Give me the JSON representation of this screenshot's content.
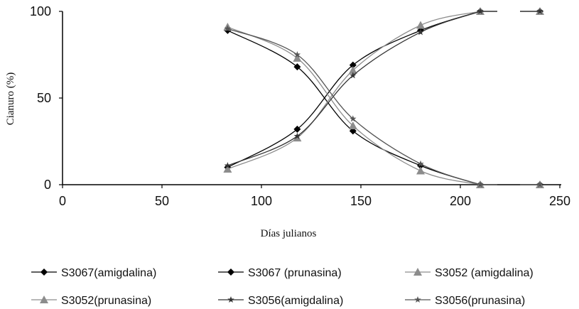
{
  "chart_data": {
    "type": "line",
    "title": "",
    "xlabel": "Días julianos",
    "ylabel": "Cianuro (%)",
    "xlim": [
      0,
      250
    ],
    "ylim": [
      0,
      100
    ],
    "x_ticks": [
      "0",
      "50",
      "100",
      "150",
      "200",
      "250"
    ],
    "y_ticks": [
      "0",
      "50",
      "100"
    ],
    "grid": false,
    "legend_position": "bottom",
    "series": [
      {
        "name": "S3067(amigdalina)",
        "color": "#000000",
        "marker": "diamond",
        "points": [
          [
            83,
            10
          ],
          [
            118,
            32
          ],
          [
            146,
            69
          ],
          [
            180,
            89
          ],
          [
            210,
            100
          ],
          [
            240,
            100
          ]
        ]
      },
      {
        "name": "S3067 (prunasina)",
        "color": "#000000",
        "marker": "diamond",
        "points": [
          [
            83,
            89
          ],
          [
            118,
            68
          ],
          [
            146,
            31
          ],
          [
            180,
            11
          ],
          [
            210,
            0
          ],
          [
            240,
            0
          ]
        ]
      },
      {
        "name": "S3052 (amigdalina)",
        "color": "#8c8c8c",
        "marker": "triangle",
        "points": [
          [
            83,
            9
          ],
          [
            118,
            27
          ],
          [
            146,
            66
          ],
          [
            180,
            92
          ],
          [
            210,
            100
          ],
          [
            240,
            100
          ]
        ]
      },
      {
        "name": "S3052(prunasina)",
        "color": "#8c8c8c",
        "marker": "triangle",
        "points": [
          [
            83,
            91
          ],
          [
            118,
            73
          ],
          [
            146,
            34
          ],
          [
            180,
            8
          ],
          [
            210,
            0
          ],
          [
            240,
            0
          ]
        ]
      },
      {
        "name": "S3056(amigdalina)",
        "color": "#333333",
        "marker": "star",
        "points": [
          [
            83,
            11
          ],
          [
            118,
            28
          ],
          [
            146,
            63
          ],
          [
            180,
            88
          ],
          [
            210,
            100
          ],
          [
            240,
            100
          ]
        ]
      },
      {
        "name": "S3056(prunasina)",
        "color": "#555555",
        "marker": "star",
        "points": [
          [
            83,
            90
          ],
          [
            118,
            75
          ],
          [
            146,
            38
          ],
          [
            180,
            12
          ],
          [
            210,
            0
          ],
          [
            240,
            0
          ]
        ]
      }
    ]
  }
}
